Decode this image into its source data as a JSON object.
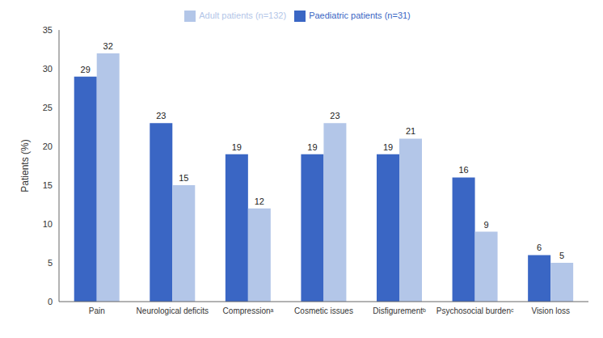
{
  "chart_data": {
    "type": "bar",
    "y_label": "Patients (%)",
    "categories": [
      "Pain",
      "Neurological deficits",
      "Compressionᵃ",
      "Cosmetic issues",
      "Disfigurementᵇ",
      "Psychosocial burdenᶜ",
      "Vision loss"
    ],
    "series": [
      {
        "name": "Paediatric patients (n=31)",
        "color": "#3a66c4",
        "values": [
          29,
          23,
          19,
          19,
          19,
          16,
          6
        ]
      },
      {
        "name": "Adult patients (n=132)",
        "color": "#b3c6e8",
        "values": [
          32,
          15,
          12,
          23,
          21,
          9,
          5
        ]
      }
    ],
    "ylim": [
      0,
      35
    ],
    "yticks": [
      0,
      5,
      10,
      15,
      20,
      25,
      30,
      35
    ],
    "grid": false,
    "legend": "top",
    "data_labels": true
  }
}
